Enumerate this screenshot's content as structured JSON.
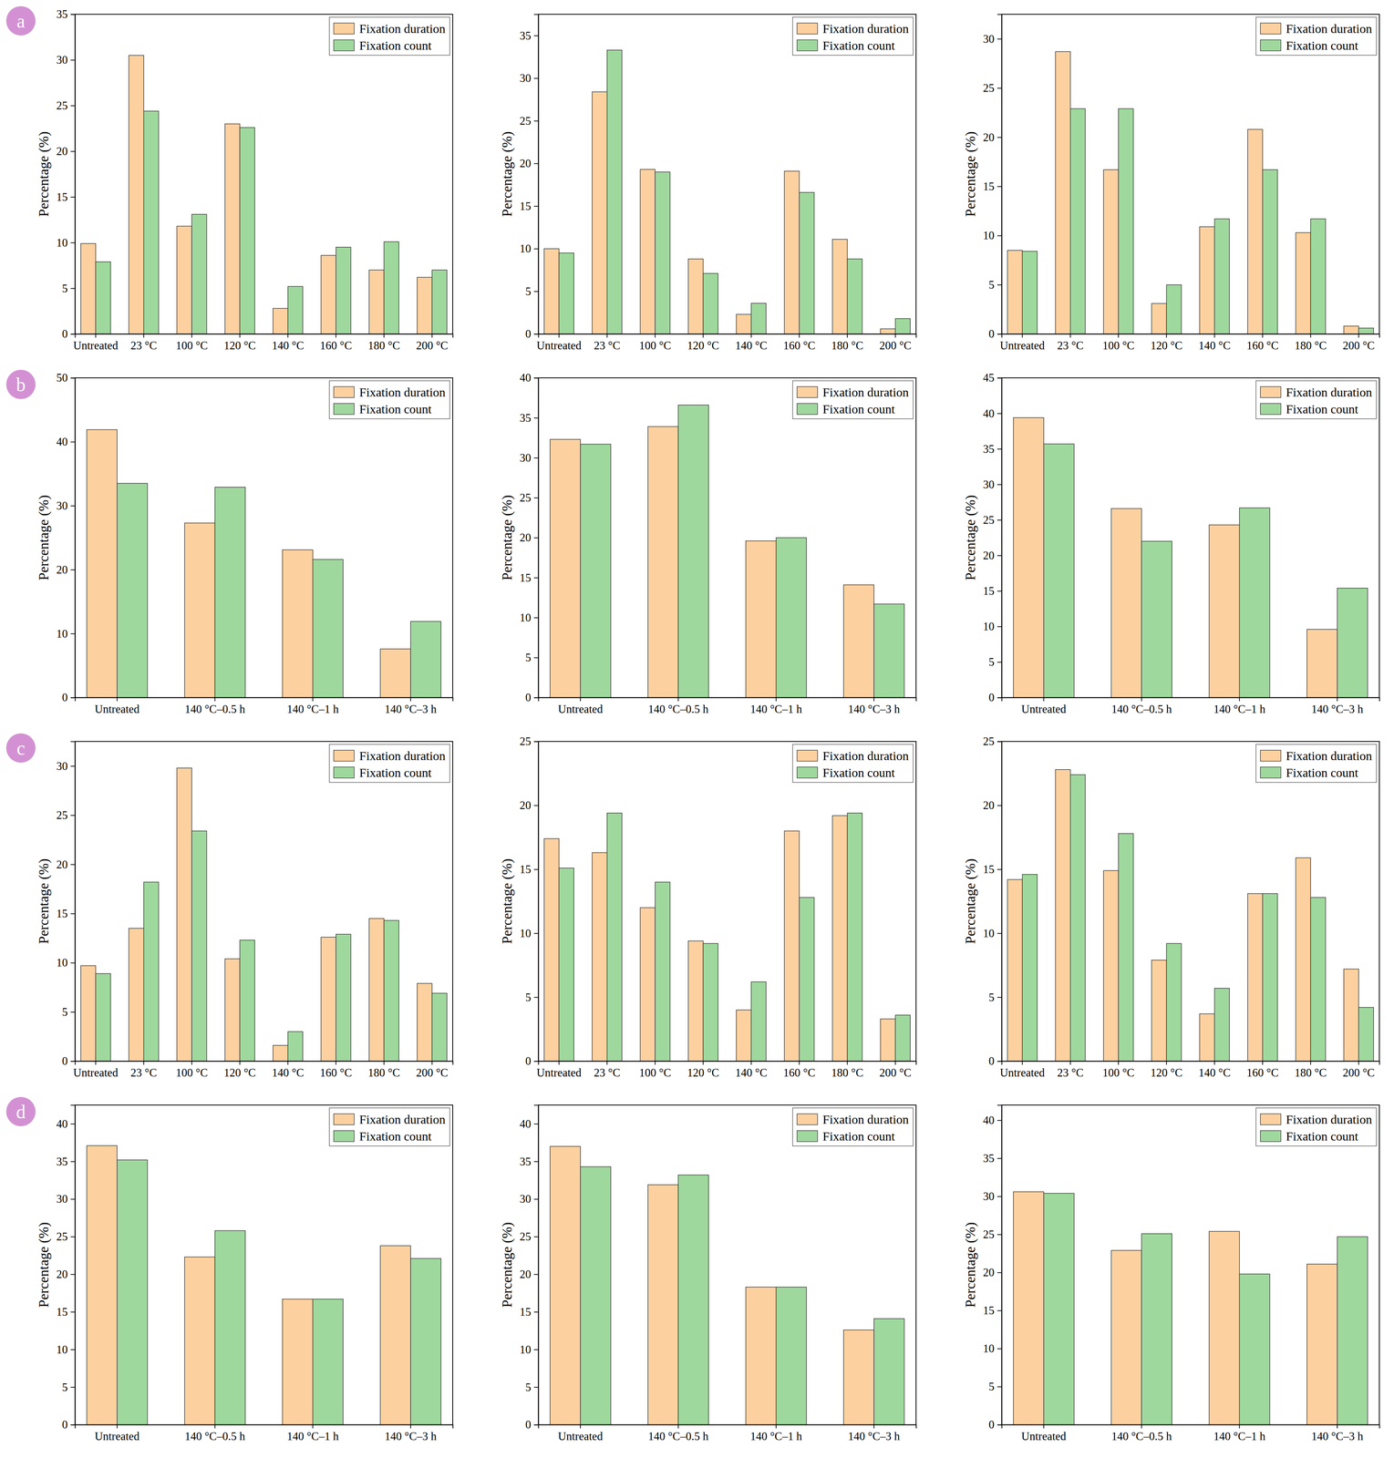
{
  "panel_labels": [
    "a",
    "b",
    "c",
    "d"
  ],
  "chart_data": [
    {
      "type": "bar",
      "ylabel": "Percentage (%)",
      "categories": [
        "Untreated",
        "23 °C",
        "100 °C",
        "120 °C",
        "140 °C",
        "160 °C",
        "180 °C",
        "200 °C"
      ],
      "series": [
        {
          "name": "Fixation duration",
          "color": "#fdd19f",
          "values": [
            9.9,
            30.5,
            11.8,
            23.0,
            2.8,
            8.6,
            7.0,
            6.2
          ]
        },
        {
          "name": "Fixation count",
          "color": "#9fd89d",
          "values": [
            7.9,
            24.4,
            13.1,
            22.6,
            5.2,
            9.5,
            10.1,
            7.0
          ]
        }
      ],
      "ylim": [
        0,
        35
      ],
      "yticks": [
        0,
        5,
        10,
        15,
        20,
        25,
        30,
        35
      ],
      "legend": "top-right"
    },
    {
      "type": "bar",
      "ylabel": "Percentage (%)",
      "categories": [
        "Untreated",
        "23 °C",
        "100 °C",
        "120 °C",
        "140 °C",
        "160 °C",
        "180 °C",
        "200 °C"
      ],
      "series": [
        {
          "name": "Fixation duration",
          "color": "#fdd19f",
          "values": [
            10.0,
            28.4,
            19.3,
            8.8,
            2.3,
            19.1,
            11.1,
            0.6
          ]
        },
        {
          "name": "Fixation count",
          "color": "#9fd89d",
          "values": [
            9.5,
            33.3,
            19.0,
            7.1,
            3.6,
            16.6,
            8.8,
            1.8
          ]
        }
      ],
      "ylim": [
        0,
        37.5
      ],
      "yticks": [
        0,
        5,
        10,
        15,
        20,
        25,
        30,
        35
      ],
      "legend": "top-right"
    },
    {
      "type": "bar",
      "ylabel": "Percentage (%)",
      "categories": [
        "Untreated",
        "23 °C",
        "100 °C",
        "120 °C",
        "140 °C",
        "160 °C",
        "180 °C",
        "200 °C"
      ],
      "series": [
        {
          "name": "Fixation duration",
          "color": "#fdd19f",
          "values": [
            8.5,
            28.7,
            16.7,
            3.1,
            10.9,
            20.8,
            10.3,
            0.8
          ]
        },
        {
          "name": "Fixation count",
          "color": "#9fd89d",
          "values": [
            8.4,
            22.9,
            22.9,
            5.0,
            11.7,
            16.7,
            11.7,
            0.6
          ]
        }
      ],
      "ylim": [
        0,
        32.5
      ],
      "yticks": [
        0,
        5,
        10,
        15,
        20,
        25,
        30
      ],
      "legend": "top-right"
    },
    {
      "type": "bar",
      "ylabel": "Percentage (%)",
      "categories": [
        "Untreated",
        "140 °C–0.5 h",
        "140 °C–1 h",
        "140 °C–3 h"
      ],
      "series": [
        {
          "name": "Fixation duration",
          "color": "#fdd19f",
          "values": [
            41.9,
            27.3,
            23.1,
            7.6
          ]
        },
        {
          "name": "Fixation count",
          "color": "#9fd89d",
          "values": [
            33.5,
            32.9,
            21.6,
            11.9
          ]
        }
      ],
      "ylim": [
        0,
        50
      ],
      "yticks": [
        0,
        10,
        20,
        30,
        40,
        50
      ],
      "legend": "top-right"
    },
    {
      "type": "bar",
      "ylabel": "Percentage (%)",
      "categories": [
        "Untreated",
        "140 °C–0.5 h",
        "140 °C–1 h",
        "140 °C–3 h"
      ],
      "series": [
        {
          "name": "Fixation duration",
          "color": "#fdd19f",
          "values": [
            32.3,
            33.9,
            19.6,
            14.1
          ]
        },
        {
          "name": "Fixation count",
          "color": "#9fd89d",
          "values": [
            31.7,
            36.6,
            20.0,
            11.7
          ]
        }
      ],
      "ylim": [
        0,
        40
      ],
      "yticks": [
        0,
        5,
        10,
        15,
        20,
        25,
        30,
        35,
        40
      ],
      "legend": "top-right"
    },
    {
      "type": "bar",
      "ylabel": "Percentage (%)",
      "categories": [
        "Untreated",
        "140 °C–0.5 h",
        "140 °C–1 h",
        "140 °C–3 h"
      ],
      "series": [
        {
          "name": "Fixation duration",
          "color": "#fdd19f",
          "values": [
            39.4,
            26.6,
            24.3,
            9.6
          ]
        },
        {
          "name": "Fixation count",
          "color": "#9fd89d",
          "values": [
            35.7,
            22.0,
            26.7,
            15.4
          ]
        }
      ],
      "ylim": [
        0,
        45
      ],
      "yticks": [
        0,
        5,
        10,
        15,
        20,
        25,
        30,
        35,
        40,
        45
      ],
      "legend": "top-right"
    },
    {
      "type": "bar",
      "ylabel": "Percentage (%)",
      "categories": [
        "Untreated",
        "23 °C",
        "100 °C",
        "120 °C",
        "140 °C",
        "160 °C",
        "180 °C",
        "200 °C"
      ],
      "series": [
        {
          "name": "Fixation duration",
          "color": "#fdd19f",
          "values": [
            9.7,
            13.5,
            29.8,
            10.4,
            1.6,
            12.6,
            14.5,
            7.9
          ]
        },
        {
          "name": "Fixation count",
          "color": "#9fd89d",
          "values": [
            8.9,
            18.2,
            23.4,
            12.3,
            3.0,
            12.9,
            14.3,
            6.9
          ]
        }
      ],
      "ylim": [
        0,
        32.5
      ],
      "yticks": [
        0,
        5,
        10,
        15,
        20,
        25,
        30
      ],
      "legend": "top-right"
    },
    {
      "type": "bar",
      "ylabel": "Percentage (%)",
      "categories": [
        "Untreated",
        "23 °C",
        "100 °C",
        "120 °C",
        "140 °C",
        "160 °C",
        "180 °C",
        "200 °C"
      ],
      "series": [
        {
          "name": "Fixation duration",
          "color": "#fdd19f",
          "values": [
            17.4,
            16.3,
            12.0,
            9.4,
            4.0,
            18.0,
            19.2,
            3.3
          ]
        },
        {
          "name": "Fixation count",
          "color": "#9fd89d",
          "values": [
            15.1,
            19.4,
            14.0,
            9.2,
            6.2,
            12.8,
            19.4,
            3.6
          ]
        }
      ],
      "ylim": [
        0,
        25
      ],
      "yticks": [
        0,
        5,
        10,
        15,
        20,
        25
      ],
      "legend": "top-right"
    },
    {
      "type": "bar",
      "ylabel": "Percentage (%)",
      "categories": [
        "Untreated",
        "23 °C",
        "100 °C",
        "120 °C",
        "140 °C",
        "160 °C",
        "180 °C",
        "200 °C"
      ],
      "series": [
        {
          "name": "Fixation duration",
          "color": "#fdd19f",
          "values": [
            14.2,
            22.8,
            14.9,
            7.9,
            3.7,
            13.1,
            15.9,
            7.2
          ]
        },
        {
          "name": "Fixation count",
          "color": "#9fd89d",
          "values": [
            14.6,
            22.4,
            17.8,
            9.2,
            5.7,
            13.1,
            12.8,
            4.2
          ]
        }
      ],
      "ylim": [
        0,
        25
      ],
      "yticks": [
        0,
        5,
        10,
        15,
        20,
        25
      ],
      "legend": "top-right"
    },
    {
      "type": "bar",
      "ylabel": "Percentage (%)",
      "categories": [
        "Untreated",
        "140 °C–0.5 h",
        "140 °C–1 h",
        "140 °C–3 h"
      ],
      "series": [
        {
          "name": "Fixation duration",
          "color": "#fdd19f",
          "values": [
            37.1,
            22.3,
            16.7,
            23.8
          ]
        },
        {
          "name": "Fixation count",
          "color": "#9fd89d",
          "values": [
            35.2,
            25.8,
            16.7,
            22.1
          ]
        }
      ],
      "ylim": [
        0,
        42.5
      ],
      "yticks": [
        0,
        5,
        10,
        15,
        20,
        25,
        30,
        35,
        40
      ],
      "legend": "top-right"
    },
    {
      "type": "bar",
      "ylabel": "Percentage (%)",
      "categories": [
        "Untreated",
        "140 °C–0.5 h",
        "140 °C–1 h",
        "140 °C–3 h"
      ],
      "series": [
        {
          "name": "Fixation duration",
          "color": "#fdd19f",
          "values": [
            37.0,
            31.9,
            18.3,
            12.6
          ]
        },
        {
          "name": "Fixation count",
          "color": "#9fd89d",
          "values": [
            34.3,
            33.2,
            18.3,
            14.1
          ]
        }
      ],
      "ylim": [
        0,
        42.5
      ],
      "yticks": [
        0,
        5,
        10,
        15,
        20,
        25,
        30,
        35,
        40
      ],
      "legend": "top-right"
    },
    {
      "type": "bar",
      "ylabel": "Percentage (%)",
      "categories": [
        "Untreated",
        "140 °C–0.5 h",
        "140 °C–1 h",
        "140 °C–3 h"
      ],
      "series": [
        {
          "name": "Fixation duration",
          "color": "#fdd19f",
          "values": [
            30.6,
            22.9,
            25.4,
            21.1
          ]
        },
        {
          "name": "Fixation count",
          "color": "#9fd89d",
          "values": [
            30.4,
            25.1,
            19.8,
            24.7
          ]
        }
      ],
      "ylim": [
        0,
        42
      ],
      "yticks": [
        0,
        5,
        10,
        15,
        20,
        25,
        30,
        35,
        40
      ],
      "legend": "top-right"
    }
  ]
}
